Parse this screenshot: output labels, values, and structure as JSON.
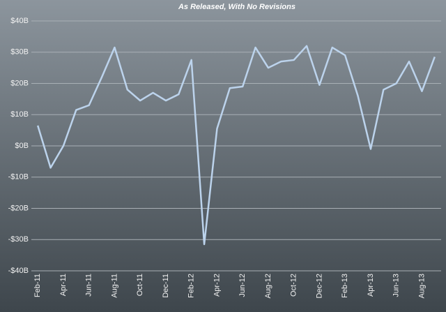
{
  "chart_data": {
    "type": "line",
    "title": "As Released, With No Revisions",
    "categories": [
      "Feb-11",
      null,
      "Apr-11",
      null,
      "Jun-11",
      null,
      "Aug-11",
      null,
      "Oct-11",
      null,
      "Dec-11",
      null,
      "Feb-12",
      null,
      "Apr-12",
      null,
      "Jun-12",
      null,
      "Aug-12",
      null,
      "Oct-12",
      null,
      "Dec-12",
      null,
      "Feb-13",
      null,
      "Apr-13",
      null,
      "Jun-13",
      null,
      "Aug-13",
      null
    ],
    "values": [
      6.5,
      -7,
      0,
      11.5,
      13,
      22,
      31.5,
      18,
      14.5,
      17,
      14.5,
      16.5,
      27.5,
      -31.5,
      5.5,
      18.5,
      19,
      31.5,
      25,
      27,
      27.5,
      32,
      19.5,
      31.5,
      29,
      16,
      -1,
      18,
      20,
      27,
      17.5,
      28.5
    ],
    "color": "#bcd3ec",
    "ylim": [
      -40,
      40
    ],
    "yticks": [
      {
        "value": -40,
        "label": "-$40B"
      },
      {
        "value": -30,
        "label": "-$30B"
      },
      {
        "value": -20,
        "label": "-$20B"
      },
      {
        "value": -10,
        "label": "-$10B"
      },
      {
        "value": 0,
        "label": "$0B"
      },
      {
        "value": 10,
        "label": "$10B"
      },
      {
        "value": 20,
        "label": "$20B"
      },
      {
        "value": 30,
        "label": "$30B"
      },
      {
        "value": 40,
        "label": "$40B"
      }
    ],
    "grid": true
  }
}
